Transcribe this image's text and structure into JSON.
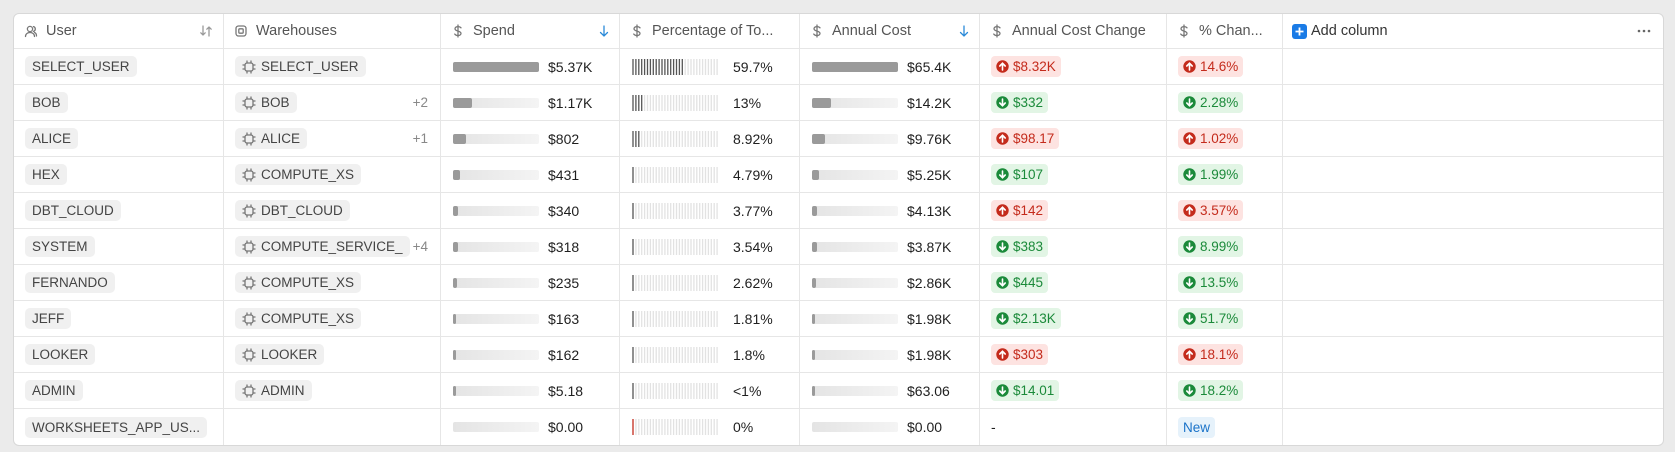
{
  "header": {
    "columns": [
      "User",
      "Warehouses",
      "Spend",
      "Percentage of To...",
      "Annual Cost",
      "Annual Cost Change",
      "% Chan...",
      "Add column"
    ]
  },
  "rows": [
    {
      "user": "SELECT_USER",
      "warehouse": "SELECT_USER",
      "spend": "$5.37K",
      "percentage": "59.7%",
      "annual_cost": "$65.4K",
      "change": "$8.32K",
      "change_trend": "up",
      "pct_change": "14.6%"
    },
    {
      "user": "BOB",
      "warehouse": "BOB",
      "warehouse_extra": "+2",
      "spend": "$1.17K",
      "percentage": "13%",
      "annual_cost": "$14.2K",
      "change": "$332",
      "change_trend": "down",
      "pct_change": "2.28%"
    },
    {
      "user": "ALICE",
      "warehouse": "ALICE",
      "warehouse_extra": "+1",
      "spend": "$802",
      "percentage": "8.92%",
      "annual_cost": "$9.76K",
      "change": "$98.17",
      "change_trend": "up",
      "pct_change": "1.02%"
    },
    {
      "user": "HEX",
      "warehouse": "COMPUTE_XS",
      "spend": "$431",
      "percentage": "4.79%",
      "annual_cost": "$5.25K",
      "change": "$107",
      "change_trend": "down",
      "pct_change": "1.99%"
    },
    {
      "user": "DBT_CLOUD",
      "warehouse": "DBT_CLOUD",
      "spend": "$340",
      "percentage": "3.77%",
      "annual_cost": "$4.13K",
      "change": "$142",
      "change_trend": "up",
      "pct_change": "3.57%"
    },
    {
      "user": "SYSTEM",
      "warehouse": "COMPUTE_SERVICE_",
      "warehouse_extra": "+4",
      "spend": "$318",
      "percentage": "3.54%",
      "annual_cost": "$3.87K",
      "change": "$383",
      "change_trend": "down",
      "pct_change": "8.99%"
    },
    {
      "user": "FERNANDO",
      "warehouse": "COMPUTE_XS",
      "spend": "$235",
      "percentage": "2.62%",
      "annual_cost": "$2.86K",
      "change": "$445",
      "change_trend": "down",
      "pct_change": "13.5%"
    },
    {
      "user": "JEFF",
      "warehouse": "COMPUTE_XS",
      "spend": "$163",
      "percentage": "1.81%",
      "annual_cost": "$1.98K",
      "change": "$2.13K",
      "change_trend": "down",
      "pct_change": "51.7%"
    },
    {
      "user": "LOOKER",
      "warehouse": "LOOKER",
      "spend": "$162",
      "percentage": "1.8%",
      "annual_cost": "$1.98K",
      "change": "$303",
      "change_trend": "up",
      "pct_change": "18.1%"
    },
    {
      "user": "ADMIN",
      "warehouse": "ADMIN",
      "spend": "$5.18",
      "percentage": "<1%",
      "annual_cost": "$63.06",
      "change": "$14.01",
      "change_trend": "down",
      "pct_change": "18.2%"
    },
    {
      "user": "WORKSHEETS_APP_US...",
      "spend": "$0.00",
      "percentage": "0%",
      "annual_cost": "$0.00",
      "change": "-",
      "pct_change": "New",
      "pct_change_trend": "new"
    }
  ]
}
